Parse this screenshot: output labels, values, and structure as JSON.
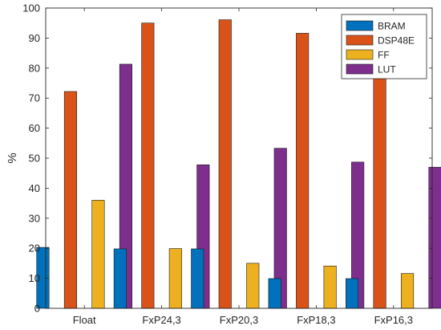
{
  "chart_data": {
    "type": "bar",
    "categories": [
      "Float",
      "FxP24,3",
      "FxP20,3",
      "FxP18,3",
      "FxP16,3"
    ],
    "series": [
      {
        "name": "BRAM",
        "color": "#0072BD",
        "values": [
          20.3,
          19.8,
          19.8,
          9.9,
          9.9
        ]
      },
      {
        "name": "DSP48E",
        "color": "#D95319",
        "values": [
          72.2,
          95.0,
          96.1,
          91.6,
          84.0
        ]
      },
      {
        "name": "FF",
        "color": "#EDB120",
        "values": [
          36.0,
          19.9,
          15.0,
          14.1,
          11.6
        ]
      },
      {
        "name": "LUT",
        "color": "#7E2F8E",
        "values": [
          81.3,
          47.8,
          53.3,
          48.7,
          47.0
        ]
      }
    ],
    "title": "",
    "xlabel": "",
    "ylabel": "%",
    "ylim": [
      0,
      100
    ],
    "yticks": [
      0,
      10,
      20,
      30,
      40,
      50,
      60,
      70,
      80,
      90,
      100
    ],
    "grid": false,
    "legend_position": "top-right"
  }
}
